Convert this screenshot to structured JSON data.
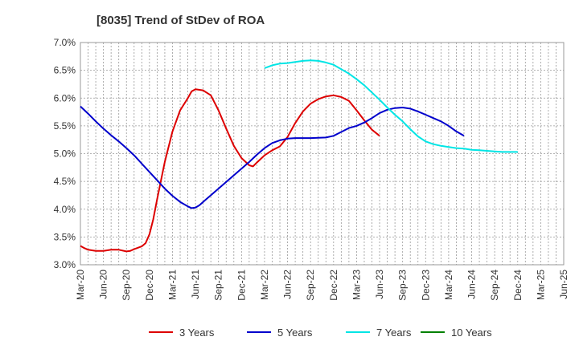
{
  "title": "[8035]  Trend of StDev of ROA",
  "chart_data": {
    "type": "line",
    "title": "[8035]  Trend of StDev of ROA",
    "xlabel": "",
    "ylabel": "",
    "ylim": [
      3.0,
      7.0
    ],
    "yticks": [
      "3.0%",
      "3.5%",
      "4.0%",
      "4.5%",
      "5.0%",
      "5.5%",
      "6.0%",
      "6.5%",
      "7.0%"
    ],
    "xticks": [
      "Mar-20",
      "Jun-20",
      "Sep-20",
      "Dec-20",
      "Mar-21",
      "Jun-21",
      "Sep-21",
      "Dec-21",
      "Mar-22",
      "Jun-22",
      "Sep-22",
      "Dec-22",
      "Mar-23",
      "Jun-23",
      "Sep-23",
      "Dec-23",
      "Mar-24",
      "Jun-24",
      "Sep-24",
      "Dec-24",
      "Mar-25",
      "Jun-25"
    ],
    "grid": true,
    "legend_position": "bottom",
    "series": [
      {
        "name": "3 Years",
        "color": "#dd0000",
        "points": [
          [
            0,
            3.34
          ],
          [
            0.5,
            3.3
          ],
          [
            1,
            3.27
          ],
          [
            2,
            3.25
          ],
          [
            3,
            3.25
          ],
          [
            4,
            3.27
          ],
          [
            5,
            3.27
          ],
          [
            6,
            3.24
          ],
          [
            6.5,
            3.25
          ],
          [
            7,
            3.28
          ],
          [
            8,
            3.33
          ],
          [
            8.5,
            3.39
          ],
          [
            9,
            3.55
          ],
          [
            9.5,
            3.82
          ],
          [
            10,
            4.18
          ],
          [
            11,
            4.85
          ],
          [
            12,
            5.4
          ],
          [
            13,
            5.78
          ],
          [
            14,
            6.0
          ],
          [
            14.5,
            6.12
          ],
          [
            15,
            6.16
          ],
          [
            16,
            6.14
          ],
          [
            17,
            6.05
          ],
          [
            18,
            5.78
          ],
          [
            19,
            5.45
          ],
          [
            20,
            5.14
          ],
          [
            21,
            4.92
          ],
          [
            22,
            4.79
          ],
          [
            22.5,
            4.77
          ],
          [
            23,
            4.84
          ],
          [
            24,
            4.97
          ],
          [
            25,
            5.06
          ],
          [
            26,
            5.13
          ],
          [
            27,
            5.3
          ],
          [
            28,
            5.55
          ],
          [
            29,
            5.76
          ],
          [
            30,
            5.9
          ],
          [
            31,
            5.98
          ],
          [
            32,
            6.03
          ],
          [
            33,
            6.05
          ],
          [
            34,
            6.02
          ],
          [
            35,
            5.95
          ],
          [
            36,
            5.78
          ],
          [
            37,
            5.6
          ],
          [
            38,
            5.43
          ],
          [
            39,
            5.32
          ]
        ]
      },
      {
        "name": "5 Years",
        "color": "#0000cc",
        "points": [
          [
            0,
            5.85
          ],
          [
            1,
            5.72
          ],
          [
            2,
            5.58
          ],
          [
            3,
            5.45
          ],
          [
            4,
            5.33
          ],
          [
            5,
            5.22
          ],
          [
            6,
            5.1
          ],
          [
            7,
            4.97
          ],
          [
            8,
            4.82
          ],
          [
            9,
            4.67
          ],
          [
            10,
            4.52
          ],
          [
            11,
            4.37
          ],
          [
            12,
            4.24
          ],
          [
            13,
            4.13
          ],
          [
            14,
            4.05
          ],
          [
            14.5,
            4.02
          ],
          [
            15,
            4.03
          ],
          [
            15.5,
            4.07
          ],
          [
            16,
            4.13
          ],
          [
            17,
            4.25
          ],
          [
            18,
            4.37
          ],
          [
            19,
            4.49
          ],
          [
            20,
            4.61
          ],
          [
            21,
            4.73
          ],
          [
            22,
            4.85
          ],
          [
            23,
            4.98
          ],
          [
            24,
            5.1
          ],
          [
            25,
            5.19
          ],
          [
            26,
            5.24
          ],
          [
            27,
            5.27
          ],
          [
            28,
            5.28
          ],
          [
            30,
            5.28
          ],
          [
            32,
            5.29
          ],
          [
            33,
            5.32
          ],
          [
            34,
            5.39
          ],
          [
            35,
            5.46
          ],
          [
            36,
            5.5
          ],
          [
            37,
            5.56
          ],
          [
            38,
            5.64
          ],
          [
            39,
            5.73
          ],
          [
            40,
            5.79
          ],
          [
            41,
            5.82
          ],
          [
            42,
            5.83
          ],
          [
            43,
            5.81
          ],
          [
            44,
            5.76
          ],
          [
            45,
            5.7
          ],
          [
            46,
            5.64
          ],
          [
            47,
            5.58
          ],
          [
            48,
            5.5
          ],
          [
            49,
            5.4
          ],
          [
            50,
            5.32
          ]
        ]
      },
      {
        "name": "7 Years",
        "color": "#00e5e5",
        "points": [
          [
            24,
            6.54
          ],
          [
            25,
            6.59
          ],
          [
            26,
            6.62
          ],
          [
            27,
            6.63
          ],
          [
            28,
            6.65
          ],
          [
            29,
            6.67
          ],
          [
            30,
            6.68
          ],
          [
            31,
            6.67
          ],
          [
            32,
            6.64
          ],
          [
            33,
            6.6
          ],
          [
            34,
            6.52
          ],
          [
            35,
            6.44
          ],
          [
            36,
            6.34
          ],
          [
            37,
            6.23
          ],
          [
            38,
            6.1
          ],
          [
            39,
            5.97
          ],
          [
            40,
            5.83
          ],
          [
            41,
            5.7
          ],
          [
            42,
            5.58
          ],
          [
            43,
            5.44
          ],
          [
            44,
            5.31
          ],
          [
            45,
            5.22
          ],
          [
            46,
            5.17
          ],
          [
            47,
            5.14
          ],
          [
            48,
            5.12
          ],
          [
            49,
            5.1
          ],
          [
            50,
            5.09
          ],
          [
            51,
            5.07
          ],
          [
            52,
            5.06
          ],
          [
            53,
            5.05
          ],
          [
            54,
            5.04
          ],
          [
            55,
            5.03
          ],
          [
            56,
            5.03
          ],
          [
            57,
            5.03
          ]
        ]
      },
      {
        "name": "10 Years",
        "color": "#008000",
        "points": []
      }
    ]
  }
}
